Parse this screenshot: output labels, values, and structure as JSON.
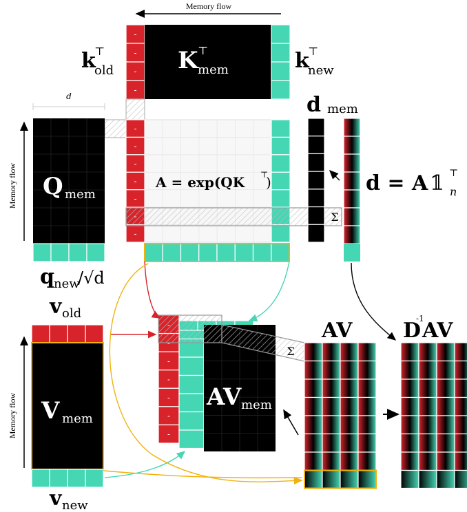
{
  "memory_flow_label": "Memory flow",
  "d_label": "d",
  "minus_glyph": "-",
  "sigma_glyph": "Σ",
  "labels": {
    "k_old": "k",
    "k_old_sup": "⊤",
    "k_old_sub": "old",
    "K_mem": "K",
    "K_mem_sup": "⊤",
    "K_mem_sub": "mem",
    "k_new": "k",
    "k_new_sup": "⊤",
    "k_new_sub": "new",
    "d_mem": "d",
    "d_mem_sub": "mem",
    "Q_mem": "Q",
    "Q_mem_sub": "mem",
    "A_eq": "A = exp(QK",
    "A_eq_sup": "⊤",
    "A_eq_end": ")",
    "d_eq": "d = A",
    "d_eq_one": "𝟙",
    "d_eq_sup": "⊤",
    "d_eq_sub": "n",
    "q_new": "q",
    "q_new_sub": "new",
    "q_new_tail": "/√d",
    "v_old": "v",
    "v_old_sub": "old",
    "V_mem": "V",
    "V_mem_sub": "mem",
    "v_new": "v",
    "v_new_sub": "new",
    "AV_mem": "AV",
    "AV_mem_sub": "mem",
    "AV": "AV",
    "DAV_D": "D",
    "DAV_sup": "-1",
    "DAV_AV": "AV"
  },
  "colors": {
    "red": "#d9232b",
    "teal": "#45d6b4",
    "black": "#000000",
    "yellow": "#f1b20f",
    "gray": "#b3b3b3",
    "light": "#f5f5f5"
  }
}
